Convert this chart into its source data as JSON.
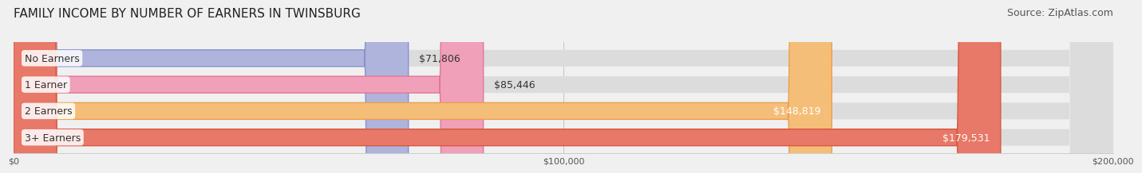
{
  "title": "FAMILY INCOME BY NUMBER OF EARNERS IN TWINSBURG",
  "source": "Source: ZipAtlas.com",
  "categories": [
    "No Earners",
    "1 Earner",
    "2 Earners",
    "3+ Earners"
  ],
  "values": [
    71806,
    85446,
    148819,
    179531
  ],
  "bar_colors": [
    "#aeb4dc",
    "#f0a0b8",
    "#f5be78",
    "#e87868"
  ],
  "bar_edge_colors": [
    "#8890cc",
    "#e07898",
    "#e8a050",
    "#d85840"
  ],
  "label_colors": [
    "#333333",
    "#333333",
    "#ffffff",
    "#ffffff"
  ],
  "value_labels": [
    "$71,806",
    "$85,446",
    "$148,819",
    "$179,531"
  ],
  "xlim": [
    0,
    200000
  ],
  "xticks": [
    0,
    100000,
    200000
  ],
  "xtick_labels": [
    "$0",
    "$100,000",
    "$200,000"
  ],
  "background_color": "#f0f0f0",
  "bar_background_color": "#e8e8e8",
  "title_fontsize": 11,
  "source_fontsize": 9,
  "label_fontsize": 9,
  "value_fontsize": 9
}
